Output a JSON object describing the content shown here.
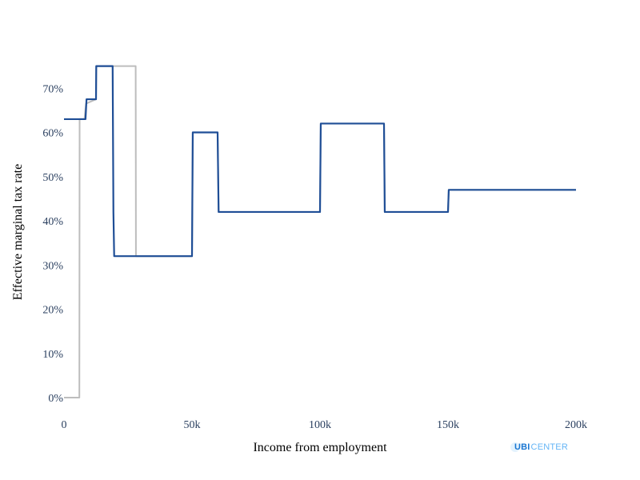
{
  "chart_data": {
    "type": "line",
    "title": "",
    "xlabel": "Income from employment",
    "ylabel": "Effective marginal tax rate",
    "xlim": [
      0,
      200000
    ],
    "ylim": [
      0,
      0.75
    ],
    "x_ticks": [
      0,
      50000,
      100000,
      150000,
      200000
    ],
    "x_tick_labels": [
      "0",
      "50k",
      "100k",
      "150k",
      "200k"
    ],
    "y_ticks": [
      0,
      0.1,
      0.2,
      0.3,
      0.4,
      0.5,
      0.6,
      0.7
    ],
    "y_tick_labels": [
      "0%",
      "10%",
      "20%",
      "30%",
      "40%",
      "50%",
      "60%",
      "70%"
    ],
    "grid": false,
    "series": [
      {
        "color": "#bdbdbd",
        "points": [
          [
            0,
            0
          ],
          [
            6000,
            0
          ],
          [
            6100,
            0.63
          ],
          [
            8000,
            0.63
          ],
          [
            8600,
            0.665
          ],
          [
            12500,
            0.675
          ],
          [
            12600,
            0.75
          ],
          [
            28000,
            0.75
          ],
          [
            28100,
            0.32
          ],
          [
            50000,
            0.32
          ],
          [
            50300,
            0.6
          ],
          [
            60000,
            0.6
          ],
          [
            60400,
            0.42
          ],
          [
            100000,
            0.42
          ],
          [
            100300,
            0.62
          ],
          [
            125000,
            0.62
          ],
          [
            125300,
            0.42
          ],
          [
            150000,
            0.42
          ],
          [
            150300,
            0.47
          ],
          [
            200000,
            0.47
          ]
        ]
      },
      {
        "color": "#1f4e96",
        "points": [
          [
            0,
            0.63
          ],
          [
            8400,
            0.63
          ],
          [
            8800,
            0.675
          ],
          [
            12500,
            0.675
          ],
          [
            12600,
            0.75
          ],
          [
            19000,
            0.75
          ],
          [
            19300,
            0.42
          ],
          [
            19600,
            0.32
          ],
          [
            50000,
            0.32
          ],
          [
            50300,
            0.6
          ],
          [
            60000,
            0.6
          ],
          [
            60400,
            0.42
          ],
          [
            100000,
            0.42
          ],
          [
            100300,
            0.62
          ],
          [
            125000,
            0.62
          ],
          [
            125300,
            0.42
          ],
          [
            150000,
            0.42
          ],
          [
            150300,
            0.47
          ],
          [
            200000,
            0.47
          ]
        ]
      }
    ]
  },
  "branding": {
    "logo_ubi": "UBI",
    "logo_center": "CENTER"
  }
}
